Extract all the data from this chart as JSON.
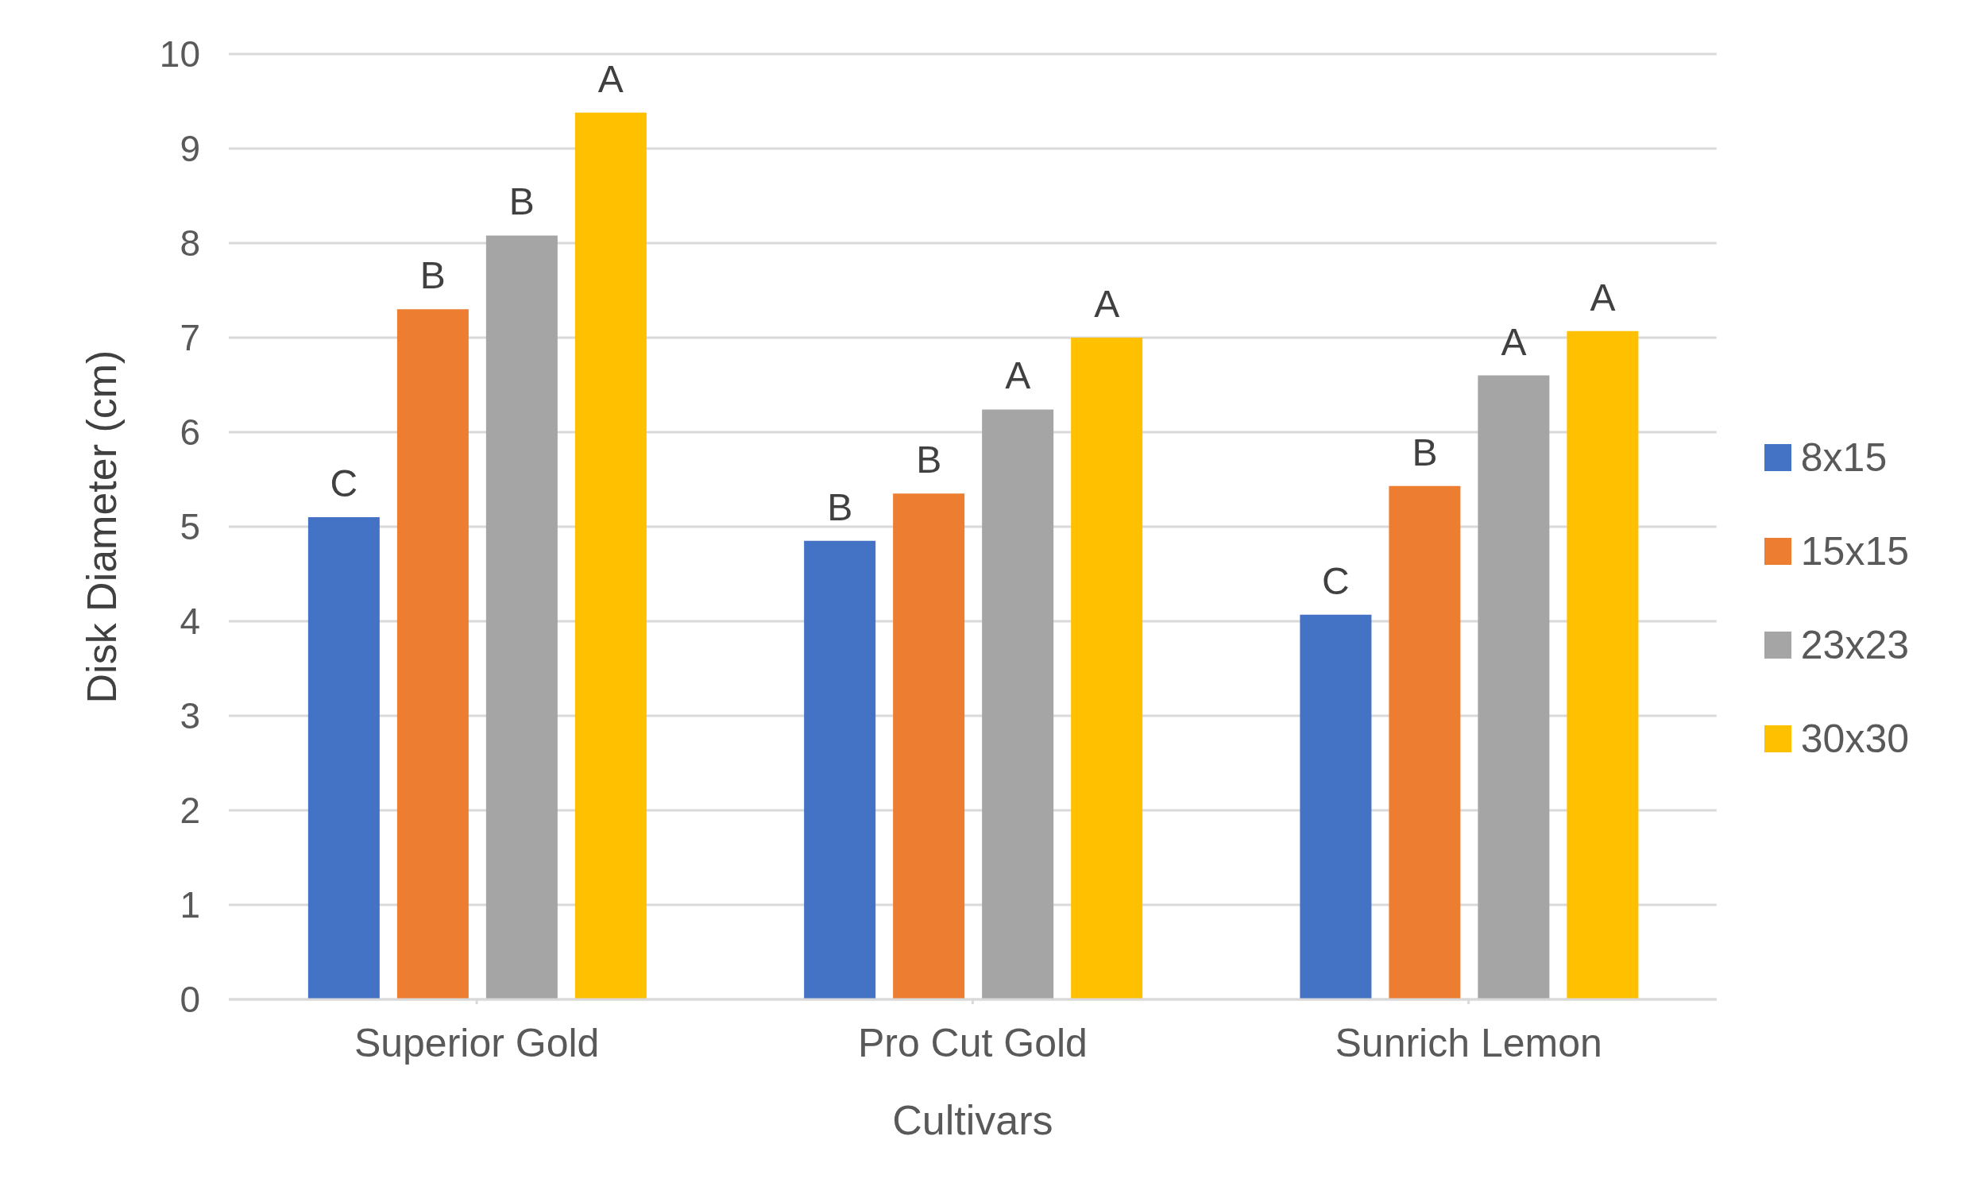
{
  "chart_data": {
    "type": "bar",
    "xlabel": "Cultivars",
    "ylabel": "Disk Diameter (cm)",
    "categories": [
      "Superior Gold",
      "Pro Cut Gold",
      "Sunrich Lemon"
    ],
    "series": [
      {
        "name": "8x15",
        "color": "#4472c4",
        "values": [
          5.1,
          4.85,
          4.07
        ],
        "value_labels": [
          "C",
          "B",
          "C"
        ]
      },
      {
        "name": "15x15",
        "color": "#ed7d31",
        "values": [
          7.3,
          5.35,
          5.43
        ],
        "value_labels": [
          "B",
          "B",
          "B"
        ]
      },
      {
        "name": "23x23",
        "color": "#a5a5a5",
        "values": [
          8.08,
          6.24,
          6.6
        ],
        "value_labels": [
          "B",
          "A",
          "A"
        ]
      },
      {
        "name": "30x30",
        "color": "#ffc000",
        "values": [
          9.38,
          7.0,
          7.07
        ],
        "value_labels": [
          "A",
          "A",
          "A"
        ]
      }
    ],
    "ylim": [
      0,
      10
    ],
    "yticks": [
      0,
      1,
      2,
      3,
      4,
      5,
      6,
      7,
      8,
      9,
      10
    ],
    "grid": "y",
    "legend": "right"
  }
}
